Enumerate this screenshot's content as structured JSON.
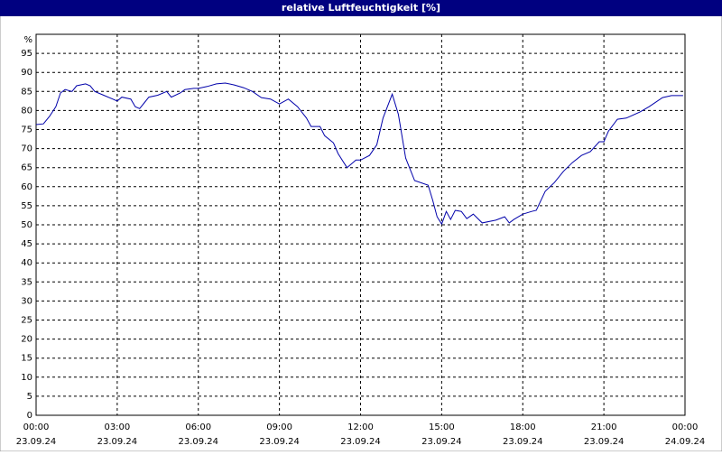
{
  "chart_data": {
    "type": "line",
    "title": "relative Luftfeuchtigkeit [%]",
    "ylabel": "%",
    "color": "#0000aa",
    "grid": true,
    "xlim": [
      0,
      24
    ],
    "ylim": [
      0,
      100
    ],
    "yticks": [
      0,
      5,
      10,
      15,
      20,
      25,
      30,
      35,
      40,
      45,
      50,
      55,
      60,
      65,
      70,
      75,
      80,
      85,
      90,
      95
    ],
    "xticks": [
      {
        "value": 0,
        "label": "00:00",
        "date": "23.09.24"
      },
      {
        "value": 3,
        "label": "03:00",
        "date": "23.09.24"
      },
      {
        "value": 6,
        "label": "06:00",
        "date": "23.09.24"
      },
      {
        "value": 9,
        "label": "09:00",
        "date": "23.09.24"
      },
      {
        "value": 12,
        "label": "12:00",
        "date": "23.09.24"
      },
      {
        "value": 15,
        "label": "15:00",
        "date": "23.09.24"
      },
      {
        "value": 18,
        "label": "18:00",
        "date": "23.09.24"
      },
      {
        "value": 21,
        "label": "21:00",
        "date": "23.09.24"
      },
      {
        "value": 24,
        "label": "00:00",
        "date": "24.09.24"
      }
    ],
    "x": [
      0,
      0.27,
      0.5,
      0.73,
      0.9,
      1.07,
      1.33,
      1.5,
      1.83,
      2,
      2.17,
      2.5,
      2.83,
      3,
      3.17,
      3.5,
      3.67,
      3.83,
      4,
      4.17,
      4.5,
      4.83,
      5,
      5.33,
      5.5,
      5.83,
      6,
      6.33,
      6.67,
      7,
      7.33,
      7.67,
      8,
      8.33,
      8.67,
      9,
      9.33,
      9.67,
      10,
      10.17,
      10.5,
      10.67,
      11,
      11.17,
      11.5,
      11.83,
      12,
      12.33,
      12.6,
      12.83,
      13.17,
      13.4,
      13.67,
      14,
      14.5,
      14.67,
      14.83,
      15,
      15.17,
      15.33,
      15.5,
      15.73,
      15.93,
      16.17,
      16.5,
      17,
      17.33,
      17.5,
      17.67,
      18,
      18.33,
      18.5,
      18.83,
      19.17,
      19.5,
      19.83,
      20.17,
      20.5,
      20.83,
      21,
      21.17,
      21.5,
      21.83,
      22.33,
      22.67,
      23.17,
      23.5,
      23.93
    ],
    "values": [
      76.3,
      76.5,
      78.5,
      81,
      84.6,
      85.5,
      85,
      86.5,
      87,
      86.5,
      85,
      84,
      83,
      82.5,
      83.5,
      83,
      81,
      80.5,
      82,
      83.5,
      84,
      85,
      83.5,
      84.6,
      85.5,
      85.8,
      85.8,
      86.3,
      87,
      87.2,
      86.7,
      86,
      85,
      83.4,
      83,
      81.7,
      83,
      81,
      78,
      75.8,
      75.8,
      73.4,
      71.5,
      68.7,
      65,
      67,
      67,
      68.2,
      71,
      78,
      84.3,
      79,
      67.5,
      61.6,
      60.4,
      56.4,
      52.1,
      50.2,
      53.5,
      51.4,
      53.8,
      53.5,
      51.6,
      52.8,
      50.5,
      51.2,
      52.1,
      50.5,
      51.4,
      52.8,
      53.5,
      53.8,
      58.8,
      61.1,
      64,
      66.3,
      68.2,
      69.2,
      71.8,
      71.8,
      74.6,
      77.7,
      78,
      79.6,
      81,
      83.4,
      83.9,
      83.9
    ]
  }
}
